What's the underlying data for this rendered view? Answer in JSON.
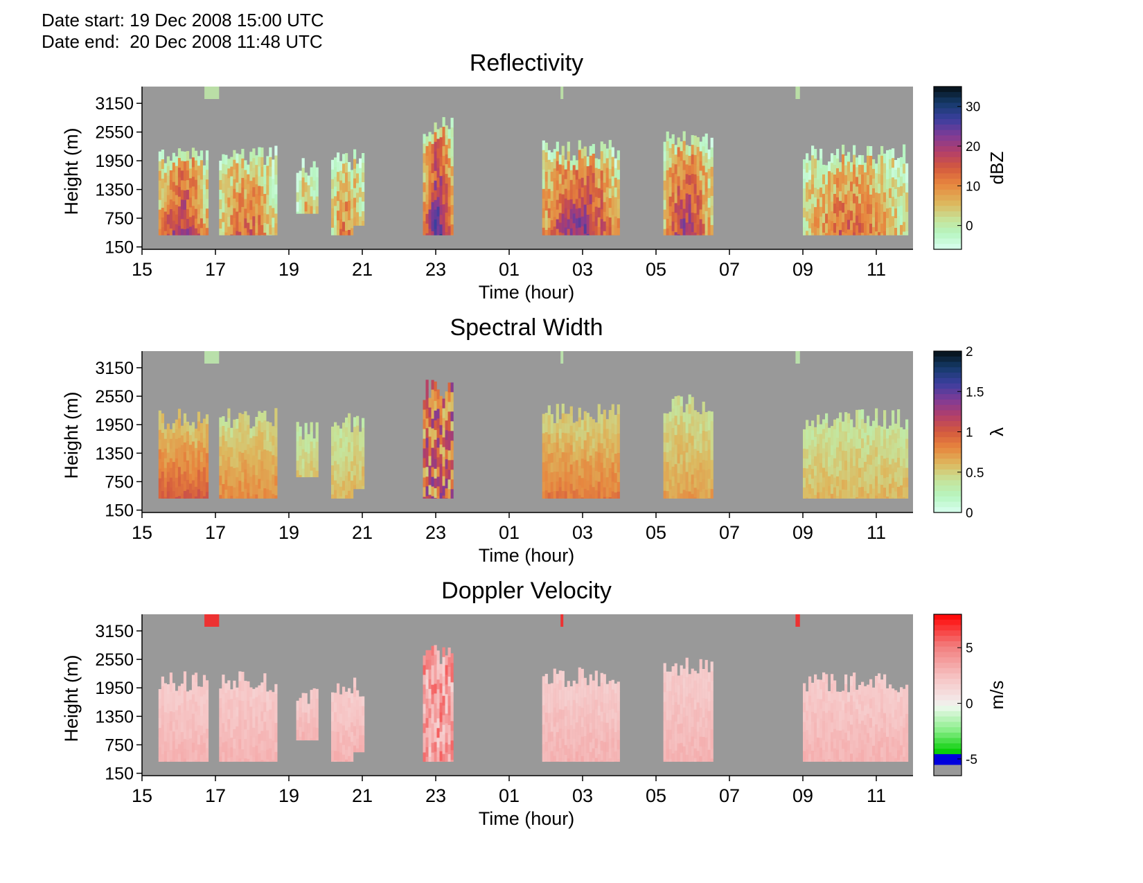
{
  "header": {
    "date_start": "Date start: 19 Dec 2008 15:00 UTC",
    "date_end": "Date end:  20 Dec 2008 11:48 UTC"
  },
  "background_color": "#999999",
  "chart_data": [
    {
      "type": "heatmap",
      "id": "reflectivity",
      "title": "Reflectivity",
      "xlabel": "Time (hour)",
      "ylabel": "Height (m)",
      "x_ticks": [
        "15",
        "17",
        "19",
        "21",
        "23",
        "01",
        "03",
        "05",
        "07",
        "09",
        "11"
      ],
      "y_ticks": [
        3150,
        2550,
        1950,
        1350,
        750,
        150
      ],
      "ylim": [
        100,
        3500
      ],
      "colorbar": {
        "label": "dBZ",
        "range": [
          -6,
          35
        ],
        "ticks": [
          {
            "v": 30,
            "t": "30"
          },
          {
            "v": 20,
            "t": "20"
          },
          {
            "v": 10,
            "t": "10"
          },
          {
            "v": 0,
            "t": "0"
          }
        ],
        "stops": [
          [
            0.0,
            "#d9fff0"
          ],
          [
            0.1,
            "#b6f5c0"
          ],
          [
            0.18,
            "#c6e39a"
          ],
          [
            0.28,
            "#ddb85e"
          ],
          [
            0.4,
            "#e7863e"
          ],
          [
            0.5,
            "#d45a3e"
          ],
          [
            0.6,
            "#b23e6a"
          ],
          [
            0.7,
            "#7e3b97"
          ],
          [
            0.8,
            "#3a3f9e"
          ],
          [
            0.9,
            "#143a68"
          ],
          [
            1.0,
            "#050f14"
          ]
        ]
      }
    },
    {
      "type": "heatmap",
      "id": "spectral_width",
      "title": "Spectral Width",
      "xlabel": "Time (hour)",
      "ylabel": "Height (m)",
      "x_ticks": [
        "15",
        "17",
        "19",
        "21",
        "23",
        "01",
        "03",
        "05",
        "07",
        "09",
        "11"
      ],
      "y_ticks": [
        3150,
        2550,
        1950,
        1350,
        750,
        150
      ],
      "ylim": [
        100,
        3500
      ],
      "colorbar": {
        "label": "λ",
        "range": [
          0,
          2
        ],
        "ticks": [
          {
            "v": 2,
            "t": "2"
          },
          {
            "v": 1.5,
            "t": "1.5"
          },
          {
            "v": 1,
            "t": "1"
          },
          {
            "v": 0.5,
            "t": "0.5"
          },
          {
            "v": 0,
            "t": "0"
          }
        ],
        "stops": [
          [
            0.0,
            "#d9fff0"
          ],
          [
            0.1,
            "#b6f5c0"
          ],
          [
            0.2,
            "#c6e39a"
          ],
          [
            0.3,
            "#ddb85e"
          ],
          [
            0.4,
            "#e7863e"
          ],
          [
            0.5,
            "#d45a3e"
          ],
          [
            0.6,
            "#b23e6a"
          ],
          [
            0.7,
            "#7e3b97"
          ],
          [
            0.8,
            "#3a3f9e"
          ],
          [
            0.9,
            "#143a68"
          ],
          [
            1.0,
            "#050f14"
          ]
        ]
      }
    },
    {
      "type": "heatmap",
      "id": "doppler_velocity",
      "title": "Doppler Velocity",
      "xlabel": "Time (hour)",
      "ylabel": "Height (m)",
      "x_ticks": [
        "15",
        "17",
        "19",
        "21",
        "23",
        "01",
        "03",
        "05",
        "07",
        "09",
        "11"
      ],
      "y_ticks": [
        3150,
        2550,
        1950,
        1350,
        750,
        150
      ],
      "ylim": [
        100,
        3500
      ],
      "colorbar": {
        "label": "m/s",
        "range": [
          -6.5,
          8
        ],
        "ticks": [
          {
            "v": 5,
            "t": "5"
          },
          {
            "v": 0,
            "t": "0"
          },
          {
            "v": -5,
            "t": "-5"
          }
        ],
        "stops": [
          [
            0.0,
            "#999999"
          ],
          [
            0.06,
            "#999999"
          ],
          [
            0.07,
            "#0000dd"
          ],
          [
            0.13,
            "#0000dd"
          ],
          [
            0.14,
            "#00cc00"
          ],
          [
            0.28,
            "#88ee88"
          ],
          [
            0.42,
            "#e8f8e8"
          ],
          [
            0.46,
            "#f4eaea"
          ],
          [
            0.6,
            "#f6c6c6"
          ],
          [
            0.8,
            "#f27e7e"
          ],
          [
            1.0,
            "#ff0000"
          ]
        ]
      }
    }
  ]
}
